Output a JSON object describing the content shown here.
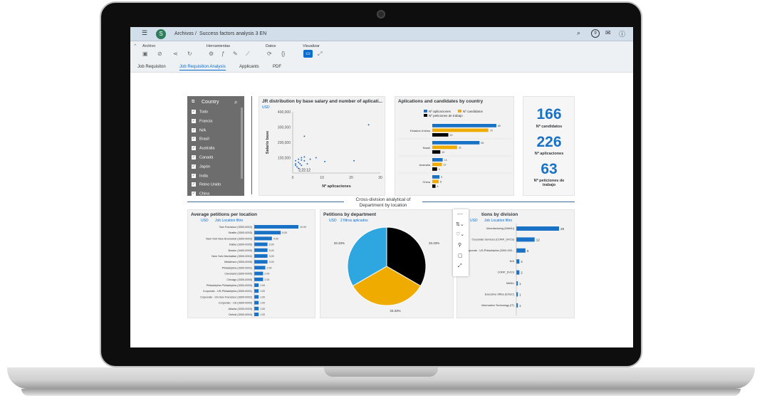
{
  "shell": {
    "breadcrumb_root": "Archivos",
    "separator": "/",
    "document_title": "Success factors analysis 3 EN",
    "avatar_initial": "S",
    "notification_count": "9"
  },
  "toolbar": {
    "groups": [
      "Archivo",
      "Herramientas",
      "Datos",
      "Visualizar"
    ]
  },
  "tabs": [
    "Job Requisiton",
    "Job Requisition Analysis",
    "Applicants",
    "PDF"
  ],
  "filter": {
    "title": "Country",
    "items": [
      "Todo",
      "Francia",
      "N/A",
      "Brasil",
      "Australia",
      "Canadá",
      "Japón",
      "India",
      "Reino Unido",
      "China"
    ]
  },
  "scatter": {
    "title": "JR distribution by base salary and number of aplicati...",
    "currency": "USD",
    "tooltip": "2,22.12"
  },
  "bars_country": {
    "title": "Aplications and candidates by country",
    "legend": [
      "Nº aplicaciones",
      "Nº candidatos",
      "Nº peticiones de trabajo"
    ]
  },
  "kpis": [
    {
      "value": "166",
      "label": "Nº candidatos"
    },
    {
      "value": "226",
      "label": "Nº aplicaciones"
    },
    {
      "value": "63",
      "label": "Nº peticiones de trabajo"
    }
  ],
  "section": {
    "title": "Cross-division analytical of Department by location"
  },
  "petitions_location": {
    "title": "Average petitions per location",
    "currency": "USD",
    "filter": "Job Location filtro"
  },
  "petitions_department": {
    "title": "Petitions by department",
    "currency": "USD",
    "filter": "2 filtros aplicados"
  },
  "petitions_division": {
    "title": "tions by division",
    "currency": "USD",
    "filter": "Job Location filtro"
  },
  "colors": {
    "blue": "#1a72c6",
    "orange": "#f0ab00",
    "black": "#000000",
    "lightblue": "#2ea7e0"
  },
  "chart_data": [
    {
      "type": "scatter",
      "title": "JR distribution by base salary and number of aplicati...",
      "xlabel": "Nº aplicaciones",
      "ylabel": "Salario base",
      "xticks": [
        "0",
        "10",
        "20",
        "30"
      ],
      "yticks": [
        "100,000",
        "200,000",
        "300,000",
        "400,000"
      ],
      "xlim": [
        0,
        30
      ],
      "ylim": [
        0,
        400000
      ],
      "points": [
        [
          1,
          80000
        ],
        [
          1,
          60000
        ],
        [
          1,
          50000
        ],
        [
          1.5,
          40000
        ],
        [
          2,
          90000
        ],
        [
          2,
          70000
        ],
        [
          2,
          30000
        ],
        [
          2.5,
          60000
        ],
        [
          3,
          85000
        ],
        [
          3,
          50000
        ],
        [
          3,
          100000
        ],
        [
          4,
          80000
        ],
        [
          4,
          105000
        ],
        [
          4,
          240000
        ],
        [
          5,
          60000
        ],
        [
          6,
          90000
        ],
        [
          8,
          100000
        ],
        [
          11,
          75000
        ],
        [
          21,
          80000
        ],
        [
          26,
          315000
        ]
      ]
    },
    {
      "type": "bar",
      "title": "Aplications and candidates by country",
      "categories": [
        "Estados Unidos",
        "Brasil",
        "Australia",
        "China"
      ],
      "series": [
        {
          "name": "Nº aplicaciones",
          "values": [
            80,
            59,
            13,
            9
          ]
        },
        {
          "name": "Nº candidatos",
          "values": [
            70,
            31,
            12,
            8
          ]
        },
        {
          "name": "Nº peticiones de trabajo",
          "values": [
            20,
            10,
            6,
            4
          ]
        }
      ]
    },
    {
      "type": "bar",
      "title": "Average petitions per location",
      "categories": [
        "San Francisco (3300-0002)",
        "Seattle (3300-0003)",
        "New York New Brunswick (3300-0003)",
        "Dallas (3300-0005)",
        "Boston (3400-0005)",
        "New York Manhattan (3300-0002)",
        "Middlesex (3300-0005)",
        "Philadelphia (3300-0001)",
        "Cleveland (3300-0005)",
        "Chicago (3300-0005)",
        "Philadelphia Philadelphia (3300-0003)",
        "Corporate - US-Philadelphia (3300-0001)",
        "Corporate - US-San Francisco (3300-0002)",
        "Corporate - US (3300-0000)",
        "Atlanta (3200-0003)",
        "Detroit (3300-0004)"
      ],
      "values": [
        10.0,
        6.0,
        4.0,
        3.0,
        3.0,
        3.0,
        3.0,
        2.5,
        2.0,
        2.0,
        1.0,
        1.0,
        1.0,
        1.0,
        1.0,
        1.0
      ]
    },
    {
      "type": "pie",
      "title": "Petitions by department",
      "labels": [
        "33.33%",
        "33.33%",
        "33.33%"
      ],
      "values": [
        33.33,
        33.33,
        33.33
      ]
    },
    {
      "type": "bar",
      "title": "tions by division",
      "categories": [
        "Manufacturing (MANU)",
        "Corporate Services (CORP_SVCS)",
        "Corporate - US-Philadelphia (3300-000...",
        "N/A",
        "CORP_SVCS",
        "MANU",
        "Executive Office (EXEC)",
        "Information Technology (IT)"
      ],
      "values": [
        28,
        12,
        6,
        2,
        2,
        1,
        1,
        1
      ]
    }
  ]
}
